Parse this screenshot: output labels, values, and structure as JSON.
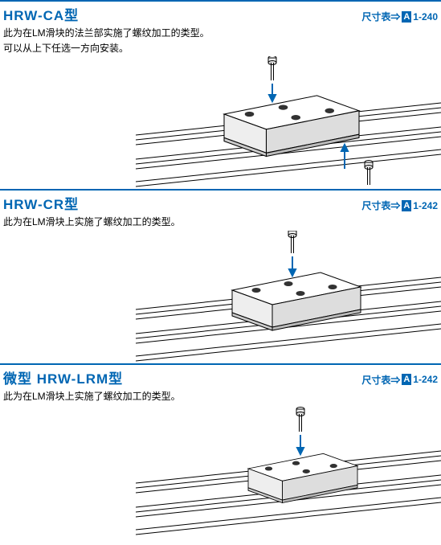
{
  "sections": [
    {
      "title": "HRW-CA型",
      "dim_label": "尺寸表⇒",
      "dim_box": "A",
      "dim_page": "1-240",
      "desc": [
        "此为在LM滑块的法兰部实施了螺纹加工的类型。",
        "可以从上下任选一方向安装。"
      ],
      "figure_height": 165,
      "variant": "ca"
    },
    {
      "title": "HRW-CR型",
      "dim_label": "尺寸表⇒",
      "dim_box": "A",
      "dim_page": "1-242",
      "desc": [
        "此为在LM滑块上实施了螺纹加工的类型。"
      ],
      "figure_height": 165,
      "variant": "cr"
    },
    {
      "title": "微型 HRW-LRM型",
      "dim_label": "尺寸表⇒",
      "dim_box": "A",
      "dim_page": "1-242",
      "desc": [
        "此为在LM滑块上实施了螺纹加工的类型。"
      ],
      "figure_height": 175,
      "variant": "lrm"
    }
  ],
  "colors": {
    "brand": "#0066b3",
    "stroke": "#000000",
    "fill_light": "#ffffff",
    "fill_shade": "#f2f2f2"
  }
}
